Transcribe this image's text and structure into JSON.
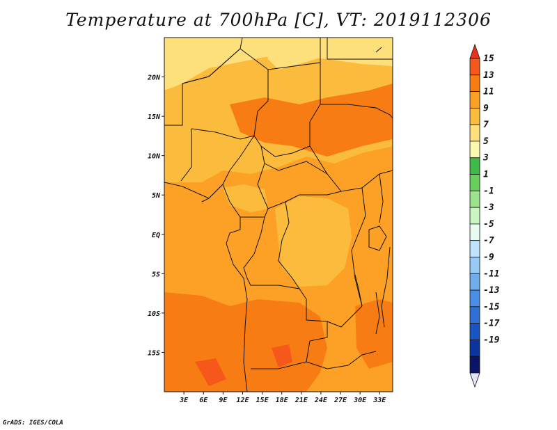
{
  "title": "Temperature at 700hPa [C], VT: 2019112306",
  "credit": "GrADS: IGES/COLA",
  "map": {
    "lon_range": [
      0,
      35
    ],
    "lat_range": [
      -20,
      25
    ],
    "lon_ticks": [
      {
        "lon": 3,
        "label": "3E"
      },
      {
        "lon": 6,
        "label": "6E"
      },
      {
        "lon": 9,
        "label": "9E"
      },
      {
        "lon": 12,
        "label": "12E"
      },
      {
        "lon": 15,
        "label": "15E"
      },
      {
        "lon": 18,
        "label": "18E"
      },
      {
        "lon": 21,
        "label": "21E"
      },
      {
        "lon": 24,
        "label": "24E"
      },
      {
        "lon": 27,
        "label": "27E"
      },
      {
        "lon": 30,
        "label": "30E"
      },
      {
        "lon": 33,
        "label": "33E"
      }
    ],
    "lat_ticks": [
      {
        "lat": 20,
        "label": "20N"
      },
      {
        "lat": 15,
        "label": "15N"
      },
      {
        "lat": 10,
        "label": "10N"
      },
      {
        "lat": 5,
        "label": "5N"
      },
      {
        "lat": 0,
        "label": "EQ"
      },
      {
        "lat": -5,
        "label": "5S"
      },
      {
        "lat": -10,
        "label": "10S"
      },
      {
        "lat": -15,
        "label": "15S"
      }
    ]
  },
  "colorbar": {
    "labels": [
      "15",
      "13",
      "11",
      "9",
      "7",
      "5",
      "3",
      "1",
      "-1",
      "-3",
      "-5",
      "-7",
      "-9",
      "-11",
      "-13",
      "-15",
      "-17",
      "-19"
    ],
    "colors": [
      "#e8341c",
      "#f5581a",
      "#f87c14",
      "#fca125",
      "#fbbc3e",
      "#fde07c",
      "#fdf8b0",
      "#3dbb46",
      "#66d05c",
      "#9be48c",
      "#c8f5c0",
      "#e9fbf0",
      "#bfe3fb",
      "#97cbf6",
      "#6fadef",
      "#4b8ee6",
      "#2f6fd8",
      "#1854c4",
      "#0b34a0",
      "#0a1468",
      "#e2e2f8"
    ]
  },
  "field_colors": {
    "t5": "#fde07c",
    "t7": "#fbbc3e",
    "t9": "#fca125",
    "t11": "#f87c14",
    "t13": "#f5581a"
  }
}
